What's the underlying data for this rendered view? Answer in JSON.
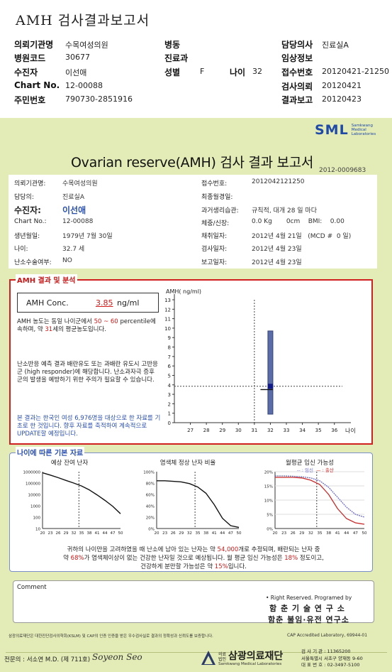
{
  "header": {
    "title": "AMH 검사결과보고서",
    "rows": [
      [
        {
          "l": "의뢰기관명",
          "v": "수목여성의원"
        },
        {
          "l": "병동",
          "v": ""
        },
        {
          "l": "담당의사",
          "v": "진료실A"
        }
      ],
      [
        {
          "l": "병원코드",
          "v": "30677"
        },
        {
          "l": "진료과",
          "v": ""
        },
        {
          "l": "임상정보",
          "v": ""
        }
      ],
      [
        {
          "l": "수진자",
          "v": "이선애"
        },
        {
          "l": "성별",
          "v": "F"
        },
        {
          "l": "나이",
          "v": "32"
        },
        {
          "l": "접수번호",
          "v": "20120421-21250"
        }
      ],
      [
        {
          "l": "Chart No.",
          "v": "12-00088"
        },
        {
          "l": "검사의뢰",
          "v": "20120421"
        }
      ],
      [
        {
          "l": "주민번호",
          "v": "790730-2851916"
        },
        {
          "l": "결과보고",
          "v": "20120423"
        }
      ]
    ]
  },
  "logo": {
    "text": "SML",
    "sub1": "Samkwang",
    "sub2": "Medical",
    "sub3": "Laboratories"
  },
  "report": {
    "title": "Ovarian reserve(AMH) 검사 결과 보고서",
    "number": "2012-0009683",
    "left": [
      {
        "l": "의뢰기관명:",
        "v": "수목여성의원"
      },
      {
        "l": "담당의:",
        "v": "진료실A"
      },
      {
        "l": "수진자:",
        "v": "이선애"
      },
      {
        "l": "Chart No.:",
        "v": "12-00088"
      },
      {
        "l": "생년월일:",
        "v": "1979년 7월 30일"
      },
      {
        "l": "나이:",
        "v": "32.7 세"
      },
      {
        "l": "난소수술여부:",
        "v": "NO"
      }
    ],
    "right": [
      {
        "l": "접수번호:",
        "v": "2012042121250"
      },
      {
        "l": "최종월경일:",
        "v": ""
      },
      {
        "l": "과거생리습관:",
        "v": "규칙적, 대개  28 일 마다"
      },
      {
        "l": "체중/신장:",
        "v": "0.0 Kg       0cm    BMI:    0.00"
      },
      {
        "l": "채취일자:",
        "v": "2012년 4월 21일   (MCD #  0 일)"
      },
      {
        "l": "검사일자:",
        "v": "2012년 4월 23일"
      },
      {
        "l": "보고일자:",
        "v": "2012년 4월 23일"
      }
    ]
  },
  "amh": {
    "section": "AMH 결과 및 분석",
    "conc_label": "AMH Conc.",
    "conc_value": "3.85",
    "conc_unit": "ng/ml",
    "p1a": "AMH 농도는 동일 나이군에서",
    "p1b": "50 ~ 60",
    "p1c": "percentile에 속하며, 약",
    "p1d": "31",
    "p1e": "세의 평균농도입니다.",
    "p2": "난소반응 예측 결과 배란유도 또는 과배란 유도시 고반응군 (high responder)에 해당합니다. 난소과자극 증후군의 발생을 예방하기 위한 주의가 필요할 수 있습니다.",
    "p3": "본 결과는 한국인 여성 6,976명을 대상으로 한 자료를 기초로 한 것입니다. 향후 자료를 축적하여 계속적으로 UPDATE할 예정입니다."
  },
  "chart_data": [
    {
      "type": "bar",
      "title": "",
      "ylabel": "AMH( ng/ml)",
      "xlabel": "나이",
      "xticks": [
        27,
        28,
        29,
        30,
        31,
        32,
        33,
        34,
        35,
        36
      ],
      "yticks": [
        0,
        1,
        2,
        3,
        4,
        5,
        6,
        7,
        8,
        9,
        10,
        11,
        12,
        13
      ],
      "xlim": [
        26,
        36.5
      ],
      "ylim": [
        0,
        13
      ],
      "range_bar": {
        "x": 32,
        "low": 0.9,
        "high": 9.7,
        "median": 3.5
      },
      "marker": {
        "x": 32,
        "y": 3.85
      },
      "ref_lines": {
        "x": 31,
        "y": 3.85
      }
    },
    {
      "type": "line",
      "title": "예상 잔여 난자",
      "yticks_label": [
        "1000000",
        "100000",
        "10000",
        "1000",
        "100",
        "10"
      ],
      "x": [
        20,
        23,
        26,
        29,
        32,
        35,
        38,
        41,
        44,
        47,
        50
      ],
      "y": [
        800000,
        500000,
        300000,
        170000,
        100000,
        55000,
        25000,
        9000,
        3000,
        900,
        200
      ],
      "ref_x": 34,
      "xticks": [
        "20",
        "23",
        "26",
        "29",
        "32",
        "35",
        "38",
        "41",
        "44",
        "47",
        "50"
      ]
    },
    {
      "type": "line",
      "title": "염색체 정상 난자 비율",
      "yticks_label": [
        "100%",
        "80%",
        "60%",
        "40%",
        "20%",
        "0%"
      ],
      "x": [
        20,
        23,
        26,
        29,
        32,
        35,
        38,
        41,
        44,
        47,
        50
      ],
      "y": [
        0.84,
        0.84,
        0.83,
        0.82,
        0.79,
        0.73,
        0.62,
        0.42,
        0.18,
        0.05,
        0.02
      ],
      "ref_x": 34,
      "xticks": [
        "20",
        "23",
        "26",
        "29",
        "32",
        "35",
        "38",
        "41",
        "44",
        "47",
        "50"
      ]
    },
    {
      "type": "line",
      "title": "월평균 임신 가능성",
      "legend": "--: 임신---: 출산",
      "legend_a": "-- : 임신",
      "legend_b": "— : 출산",
      "yticks_label": [
        "20%",
        "15%",
        "10%",
        "5%",
        "0%"
      ],
      "x": [
        20,
        23,
        26,
        29,
        32,
        35,
        38,
        41,
        44,
        47,
        50
      ],
      "series": [
        {
          "name": "임신",
          "color": "#c82a2a",
          "y": [
            0.18,
            0.18,
            0.18,
            0.178,
            0.17,
            0.155,
            0.12,
            0.07,
            0.035,
            0.02,
            0.015
          ]
        },
        {
          "name": "출산",
          "color": "#6e6ec8",
          "y": [
            0.185,
            0.185,
            0.184,
            0.182,
            0.178,
            0.168,
            0.145,
            0.11,
            0.075,
            0.05,
            0.04
          ]
        }
      ],
      "ref_x": 34,
      "xticks": [
        "20",
        "23",
        "26",
        "29",
        "32",
        "35",
        "38",
        "41",
        "44",
        "47",
        "50"
      ]
    }
  ],
  "age_section": {
    "title": "나이에 따른 기본 자료",
    "summary_a": "귀하의 나이만을 고려하였을 때 난소에 남아 있는 난자는 약",
    "eggs": "54,000",
    "summary_b": "개로 추정되며, 배란되는 난자 중",
    "summary_c": "약",
    "normal_pct": "68%",
    "summary_d": "가 염색체이상이 없는 건강한 난자일 것으로 예상됩니다. 월 평균 임신 가능성은",
    "preg_pct": "18%",
    "summary_e": "정도이고,",
    "summary_f": "건강하게 분만할 가능성은 약",
    "birth_pct": "15%",
    "summary_g": "입니다."
  },
  "comment": {
    "label": "Comment"
  },
  "footer": {
    "rights": "• Right Reserved. Programed by",
    "inst1": "함 춘 기 술 연 구 소",
    "inst2": "함춘 불임·유전 연구소",
    "cert": "삼광의료재단은 대한진단검사의학회(KSLM) 및 CAP의 인증 인증을 받은 우수검사실로 결과의 정확성과 신뢰도를 보증합니다.",
    "cap": "CAP  Accredited  Laboratory,  69944-01",
    "doctor_label": "전문의 : 서소연 M.D. (제 711호)",
    "signature": "Soyeon Seo",
    "found_small": "의료법인",
    "found_name": "삼광의료재단",
    "found_en": "Samkwang Medical Laboratories",
    "tel1": "검 사 기 관 : 11365200",
    "tel2": "서울특별시 서초구 양재동 9-60",
    "tel3": "대 표 번 호 : 02-3497-5100"
  }
}
